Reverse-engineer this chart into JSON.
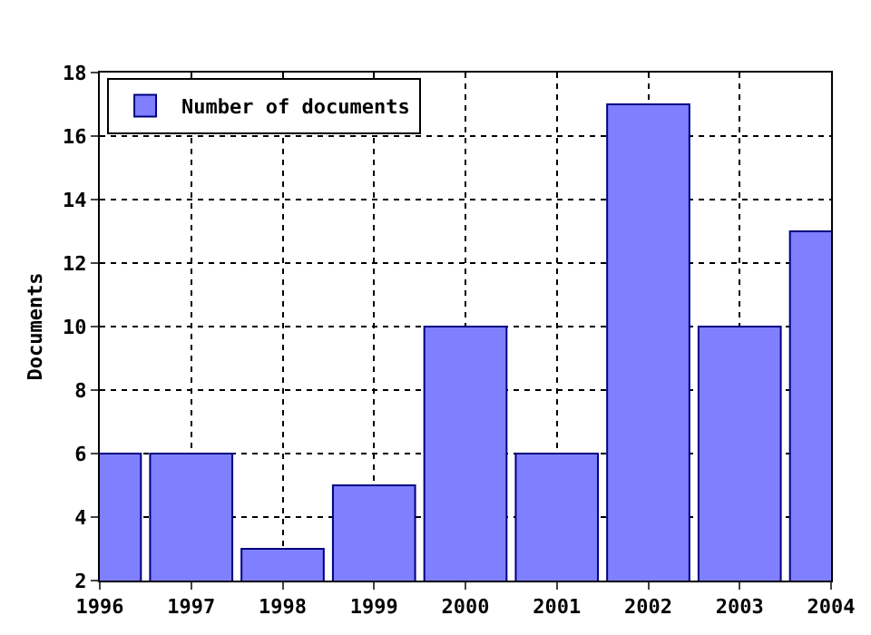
{
  "chart_data": {
    "type": "bar",
    "ylabel": "Documents",
    "x": [
      1996,
      1997,
      1998,
      1999,
      2000,
      2001,
      2002,
      2003,
      2004
    ],
    "series": [
      {
        "name": "Number of documents",
        "color": "#7f7fff",
        "values": [
          6,
          6,
          3,
          5,
          10,
          6,
          17,
          10,
          13
        ]
      }
    ],
    "xlim": [
      1996,
      2004
    ],
    "xticks": [
      1996,
      1997,
      1998,
      1999,
      2000,
      2001,
      2002,
      2003,
      2004
    ],
    "ylim": [
      2,
      18
    ],
    "yticks": [
      2,
      4,
      6,
      8,
      10,
      12,
      14,
      16,
      18
    ],
    "grid": true,
    "legend": "top left"
  }
}
